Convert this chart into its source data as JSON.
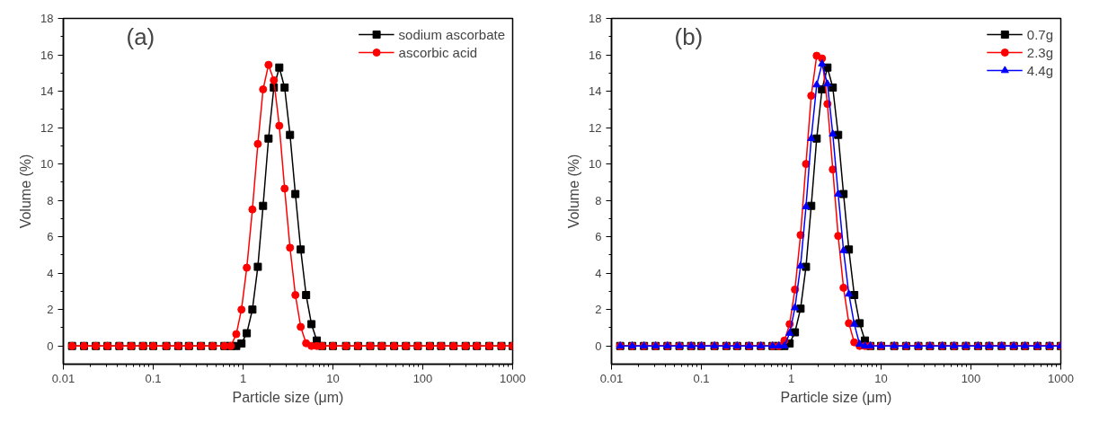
{
  "chart_data": [
    {
      "type": "line",
      "xlabel": "Particle size (μm)",
      "ylabel": "Volume (%)",
      "annotations": [
        "(a)"
      ],
      "log": "x",
      "xlim": [
        0.01,
        1000
      ],
      "xticks": [
        0.01,
        0.1,
        1,
        10,
        100,
        1000
      ],
      "ylim": [
        -1,
        18
      ],
      "yticks": [
        0,
        2,
        4,
        6,
        8,
        10,
        12,
        14,
        16,
        18
      ],
      "grid": false,
      "legend": "top right",
      "x": [
        0.0125,
        0.017,
        0.023,
        0.031,
        0.042,
        0.057,
        0.077,
        0.1,
        0.14,
        0.19,
        0.25,
        0.34,
        0.46,
        0.62,
        0.73,
        0.84,
        0.96,
        1.1,
        1.27,
        1.46,
        1.67,
        1.92,
        2.2,
        2.53,
        2.9,
        3.33,
        3.82,
        4.38,
        5.03,
        5.77,
        6.62,
        7.6,
        10,
        14,
        19,
        26,
        35,
        48,
        65,
        88,
        120,
        160,
        220,
        300,
        400,
        550,
        750,
        1000
      ],
      "series": [
        {
          "name": "sodium ascorbate",
          "color": "#000000",
          "marker": "square",
          "values": [
            0,
            0,
            0,
            0,
            0,
            0,
            0,
            0,
            0,
            0,
            0,
            0,
            0,
            0,
            0,
            0,
            0.14,
            0.7,
            2.0,
            4.35,
            7.7,
            11.4,
            14.2,
            15.3,
            14.2,
            11.6,
            8.35,
            5.3,
            2.8,
            1.2,
            0.3,
            0,
            0,
            0,
            0,
            0,
            0,
            0,
            0,
            0,
            0,
            0,
            0,
            0,
            0,
            0,
            0,
            0
          ]
        },
        {
          "name": "ascorbic acid",
          "color": "#ff0000",
          "marker": "circle",
          "values": [
            0,
            0,
            0,
            0,
            0,
            0,
            0,
            0,
            0,
            0,
            0,
            0,
            0,
            0,
            0,
            0.65,
            2.0,
            4.3,
            7.5,
            11.1,
            14.1,
            15.45,
            14.6,
            12.1,
            8.65,
            5.4,
            2.8,
            1.05,
            0.15,
            0,
            0,
            0,
            0,
            0,
            0,
            0,
            0,
            0,
            0,
            0,
            0,
            0,
            0,
            0,
            0,
            0,
            0,
            0
          ]
        }
      ]
    },
    {
      "type": "line",
      "xlabel": "Particle size (μm)",
      "ylabel": "Volume (%)",
      "annotations": [
        "(b)"
      ],
      "log": "x",
      "xlim": [
        0.01,
        1000
      ],
      "xticks": [
        0.01,
        0.1,
        1,
        10,
        100,
        1000
      ],
      "ylim": [
        -1,
        18
      ],
      "yticks": [
        0,
        2,
        4,
        6,
        8,
        10,
        12,
        14,
        16,
        18
      ],
      "grid": false,
      "legend": "top right",
      "x": [
        0.0125,
        0.017,
        0.023,
        0.031,
        0.042,
        0.057,
        0.077,
        0.1,
        0.14,
        0.19,
        0.25,
        0.34,
        0.46,
        0.62,
        0.73,
        0.84,
        0.96,
        1.1,
        1.27,
        1.46,
        1.67,
        1.92,
        2.2,
        2.53,
        2.9,
        3.33,
        3.82,
        4.38,
        5.03,
        5.77,
        6.62,
        7.6,
        10,
        14,
        19,
        26,
        35,
        48,
        65,
        88,
        120,
        160,
        220,
        300,
        400,
        550,
        750,
        1000
      ],
      "series": [
        {
          "name": "0.7g",
          "color": "#000000",
          "marker": "square",
          "values": [
            0,
            0,
            0,
            0,
            0,
            0,
            0,
            0,
            0,
            0,
            0,
            0,
            0,
            0,
            0,
            0,
            0.14,
            0.75,
            2.05,
            4.35,
            7.7,
            11.4,
            14.1,
            15.3,
            14.2,
            11.6,
            8.35,
            5.3,
            2.8,
            1.25,
            0.3,
            0,
            0,
            0,
            0,
            0,
            0,
            0,
            0,
            0,
            0,
            0,
            0,
            0,
            0,
            0,
            0,
            0
          ]
        },
        {
          "name": "2.3g",
          "color": "#ff0000",
          "marker": "circle",
          "values": [
            0,
            0,
            0,
            0,
            0,
            0,
            0,
            0,
            0,
            0,
            0,
            0,
            0,
            0,
            0,
            0.3,
            1.2,
            3.1,
            6.1,
            10.0,
            13.75,
            15.95,
            15.8,
            13.3,
            9.7,
            6.05,
            3.2,
            1.25,
            0.2,
            0,
            0,
            0,
            0,
            0,
            0,
            0,
            0,
            0,
            0,
            0,
            0,
            0,
            0,
            0,
            0,
            0,
            0,
            0
          ]
        },
        {
          "name": "4.4g",
          "color": "#0000ff",
          "marker": "triangle",
          "values": [
            0,
            0,
            0,
            0,
            0,
            0,
            0,
            0,
            0,
            0,
            0,
            0,
            0,
            0,
            0,
            0,
            0.7,
            2.1,
            4.4,
            7.65,
            11.4,
            14.35,
            15.5,
            14.4,
            11.65,
            8.35,
            5.25,
            2.85,
            1.2,
            0.1,
            0,
            0,
            0,
            0,
            0,
            0,
            0,
            0,
            0,
            0,
            0,
            0,
            0,
            0,
            0,
            0,
            0,
            0
          ]
        }
      ]
    }
  ]
}
